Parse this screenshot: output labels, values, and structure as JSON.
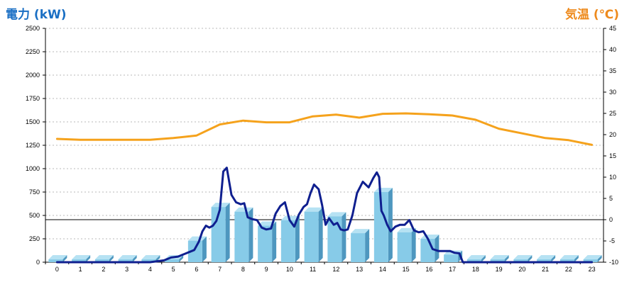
{
  "chart_data": {
    "type": "bar",
    "left_axis_title": "電力 (kW)",
    "right_axis_title": "気温 (℃)",
    "categories": [
      "0",
      "1",
      "2",
      "3",
      "4",
      "5",
      "6",
      "7",
      "8",
      "9",
      "10",
      "11",
      "12",
      "13",
      "14",
      "15",
      "16",
      "17",
      "18",
      "19",
      "20",
      "21",
      "22",
      "23"
    ],
    "y_left": {
      "min": 0,
      "max": 2500,
      "step": 250,
      "ticks": [
        "0",
        "250",
        "500",
        "750",
        "1000",
        "1250",
        "1500",
        "1750",
        "2000",
        "2250",
        "2500"
      ]
    },
    "y_right": {
      "min": -10,
      "max": 45,
      "step": 5,
      "ticks": [
        "-10",
        "-5",
        "0",
        "5",
        "10",
        "15",
        "20",
        "25",
        "30",
        "35",
        "40",
        "45"
      ]
    },
    "grid": true,
    "series": [
      {
        "kind": "bar",
        "axis": "left",
        "values": [
          30,
          30,
          30,
          30,
          30,
          30,
          230,
          590,
          540,
          390,
          450,
          540,
          490,
          310,
          750,
          320,
          250,
          80,
          30,
          30,
          30,
          30,
          30,
          30
        ],
        "color": "#87cbe8",
        "side_color": "#4e97bf",
        "top_color": "#b6e2f3"
      },
      {
        "kind": "line",
        "axis": "left",
        "x": [
          0,
          1,
          2,
          3,
          4,
          4.6,
          4.9,
          5.2,
          5.5,
          5.9,
          6.1,
          6.25,
          6.4,
          6.55,
          6.7,
          6.85,
          7.0,
          7.15,
          7.3,
          7.5,
          7.7,
          7.9,
          8.05,
          8.2,
          8.4,
          8.6,
          8.8,
          9.0,
          9.2,
          9.4,
          9.6,
          9.8,
          10.0,
          10.2,
          10.4,
          10.6,
          10.75,
          10.9,
          11.05,
          11.25,
          11.4,
          11.55,
          11.7,
          11.9,
          12.05,
          12.2,
          12.35,
          12.5,
          12.7,
          12.9,
          13.15,
          13.4,
          13.6,
          13.75,
          13.85,
          13.95,
          14.05,
          14.2,
          14.35,
          14.55,
          14.75,
          14.95,
          15.15,
          15.35,
          15.55,
          15.75,
          15.95,
          16.15,
          16.4,
          16.65,
          16.9,
          17.1,
          17.3,
          17.45,
          18,
          19,
          20,
          21,
          22,
          23
        ],
        "values": [
          0,
          0,
          0,
          0,
          0,
          20,
          50,
          60,
          90,
          130,
          220,
          330,
          390,
          370,
          390,
          440,
          560,
          970,
          1010,
          720,
          640,
          620,
          630,
          480,
          460,
          450,
          370,
          350,
          360,
          520,
          600,
          640,
          450,
          380,
          510,
          590,
          620,
          740,
          830,
          780,
          610,
          400,
          470,
          400,
          420,
          350,
          340,
          350,
          500,
          740,
          860,
          800,
          900,
          960,
          910,
          550,
          500,
          400,
          330,
          380,
          400,
          400,
          450,
          340,
          320,
          330,
          250,
          140,
          120,
          120,
          120,
          100,
          95,
          0,
          0,
          0,
          0,
          0,
          0,
          0
        ],
        "color": "#0f1f8f"
      },
      {
        "kind": "line",
        "axis": "right",
        "x": [
          0,
          1,
          2,
          3,
          4,
          5,
          6,
          7,
          8,
          9,
          10,
          11,
          12,
          13,
          14,
          15,
          16,
          17,
          18,
          19,
          20,
          21,
          22,
          23
        ],
        "values": [
          19,
          18.8,
          18.8,
          18.8,
          18.8,
          19.2,
          19.8,
          22.4,
          23.3,
          22.9,
          22.9,
          24.3,
          24.7,
          24,
          24.9,
          25,
          24.8,
          24.5,
          23.5,
          21.4,
          20.3,
          19.2,
          18.7,
          17.6
        ],
        "color": "#f5a21c"
      }
    ]
  }
}
